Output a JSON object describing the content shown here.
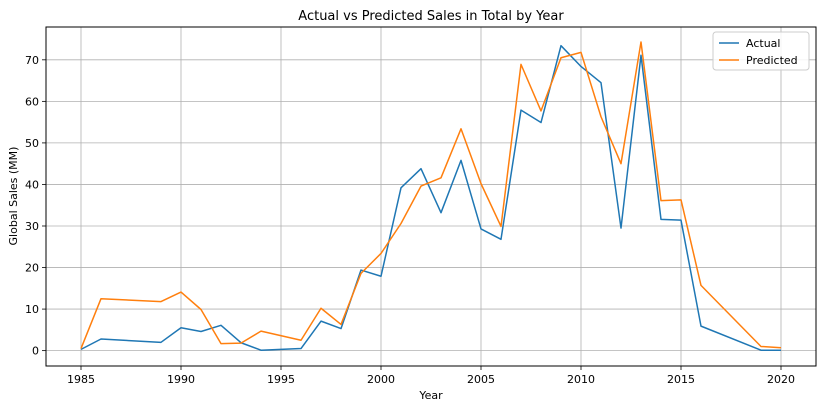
{
  "chart_data": {
    "type": "line",
    "title": "Actual vs Predicted Sales in Total by Year",
    "xlabel": "Year",
    "ylabel": "Global Sales (MM)",
    "xlim": [
      1983.25,
      2021.75
    ],
    "ylim": [
      -3.7,
      77.9
    ],
    "xticks": [
      1985,
      1990,
      1995,
      2000,
      2005,
      2010,
      2015,
      2020
    ],
    "yticks": [
      0,
      10,
      20,
      30,
      40,
      50,
      60,
      70
    ],
    "grid": true,
    "legend_position": "top-right",
    "x": [
      1985,
      1986,
      1989,
      1990,
      1991,
      1992,
      1993,
      1994,
      1996,
      1997,
      1998,
      1999,
      2000,
      2001,
      2002,
      2003,
      2004,
      2005,
      2006,
      2007,
      2008,
      2009,
      2010,
      2011,
      2012,
      2013,
      2014,
      2015,
      2016,
      2019,
      2020
    ],
    "series": [
      {
        "name": "Actual",
        "color": "#1f77b4",
        "values": [
          0.3,
          2.8,
          2.0,
          5.5,
          4.6,
          6.1,
          1.9,
          0.1,
          0.5,
          7.1,
          5.3,
          19.4,
          17.9,
          39.2,
          43.8,
          33.2,
          45.8,
          29.3,
          26.8,
          57.9,
          54.9,
          73.4,
          68.4,
          64.5,
          29.5,
          71.1,
          31.6,
          31.4,
          5.9,
          0.1,
          0.1
        ]
      },
      {
        "name": "Predicted",
        "color": "#ff7f0e",
        "values": [
          0.5,
          12.5,
          11.8,
          14.1,
          9.9,
          1.7,
          1.8,
          4.7,
          2.5,
          10.2,
          6.3,
          18.6,
          23.4,
          30.6,
          39.6,
          41.6,
          53.4,
          40.2,
          29.9,
          68.9,
          57.7,
          70.5,
          71.8,
          56.3,
          45.0,
          74.3,
          36.1,
          36.3,
          15.7,
          1.0,
          0.7
        ]
      }
    ]
  }
}
